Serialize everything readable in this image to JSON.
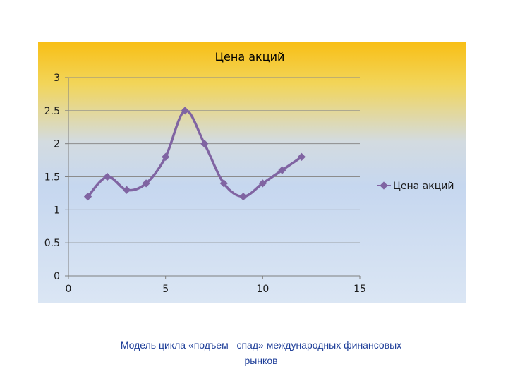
{
  "chart_data": {
    "type": "line",
    "title": "Цена акций",
    "x": [
      1,
      2,
      3,
      4,
      5,
      6,
      7,
      8,
      9,
      10,
      11,
      12
    ],
    "series": [
      {
        "name": "Цена акций",
        "values": [
          1.2,
          1.5,
          1.3,
          1.4,
          1.8,
          2.5,
          2.0,
          1.4,
          1.2,
          1.4,
          1.6,
          1.8
        ]
      }
    ],
    "xlim": [
      0,
      15
    ],
    "ylim": [
      0,
      3
    ],
    "x_ticks": [
      "0",
      "5",
      "10",
      "15"
    ],
    "y_ticks": [
      "0",
      "0.5",
      "1",
      "1.5",
      "2",
      "2.5",
      "3"
    ],
    "grid": "horizontal",
    "smooth": true,
    "legend": "right",
    "colors": {
      "series": "#8064a2",
      "grid": "#8c8c8c",
      "axis": "#7f7f7f"
    }
  },
  "caption": {
    "line1": "Модель цикла «подъем– спад» международных финансовых",
    "line2": "рынков"
  }
}
